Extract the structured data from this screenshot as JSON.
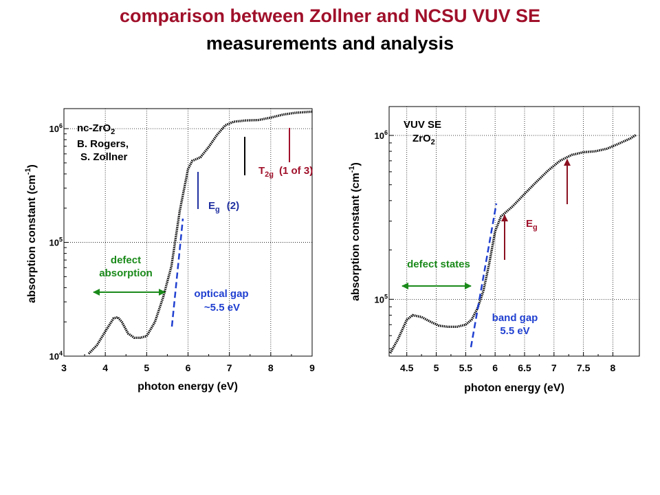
{
  "slide": {
    "title_line1": "comparison between Zollner and NCSU VUV SE",
    "title_line2": "measurements and analysis",
    "title_color": "#a0102a"
  },
  "chart_data": [
    {
      "type": "line",
      "xlabel": "photon energy (eV)",
      "ylabel": "absorption constant (cm-1)",
      "xlim": [
        3,
        9
      ],
      "ylim": [
        10000,
        1500000
      ],
      "yscale": "log",
      "xticks": [
        3,
        4,
        5,
        6,
        7,
        8,
        9
      ],
      "yticks": [
        {
          "value": 10000,
          "label": "10",
          "exp": "4"
        },
        {
          "value": 100000,
          "label": "10",
          "exp": "5"
        },
        {
          "value": 1000000,
          "label": "10",
          "exp": "6"
        }
      ],
      "grid": true,
      "series": [
        {
          "x": [
            3.6,
            3.8,
            4.0,
            4.2,
            4.3,
            4.4,
            4.55,
            4.7,
            4.85,
            5.0,
            5.2,
            5.4,
            5.6,
            5.8,
            6.0,
            6.1,
            6.3,
            6.5,
            6.7,
            6.9,
            7.1,
            7.4,
            7.7,
            8.0,
            8.3,
            8.6,
            9.0
          ],
          "y": [
            10500,
            12500,
            16500,
            21500,
            22000,
            20000,
            15800,
            14500,
            14500,
            15000,
            20000,
            33000,
            62000,
            190000,
            440000,
            520000,
            560000,
            690000,
            880000,
            1070000,
            1150000,
            1180000,
            1190000,
            1250000,
            1330000,
            1380000,
            1410000
          ]
        }
      ],
      "annotations": {
        "sample_1": "nc-ZrO",
        "sample_1_sub": "2",
        "sample_2": "B. Rogers,",
        "sample_3": "S. Zollner",
        "eg_label": "E",
        "eg_sub": "g",
        "eg_num": "(2)",
        "t2g_label": "T",
        "t2g_sub": "2g",
        "t2g_num": "(1 of 3)",
        "defect_1": "defect",
        "defect_2": "absorption",
        "gap_1": "optical gap",
        "gap_2": "~5.5 eV"
      },
      "colors": {
        "eg": "#1f2fa0",
        "t2g": "#a0102a",
        "defect": "#1a8a1a",
        "gap": "#1f3fd0"
      }
    },
    {
      "type": "line",
      "xlabel": "photon energy (eV)",
      "ylabel": "absorption constant (cm-1)",
      "xlim": [
        4.2,
        8.45
      ],
      "ylim": [
        45000,
        1500000
      ],
      "yscale": "log",
      "xticks": [
        4.5,
        5,
        5.5,
        6,
        6.5,
        7,
        7.5,
        8
      ],
      "yticks": [
        {
          "value": 100000,
          "label": "10",
          "exp": "5"
        },
        {
          "value": 1000000,
          "label": "10",
          "exp": "6"
        }
      ],
      "grid": true,
      "series": [
        {
          "x": [
            4.22,
            4.35,
            4.5,
            4.6,
            4.75,
            4.9,
            5.05,
            5.2,
            5.35,
            5.5,
            5.6,
            5.7,
            5.8,
            5.9,
            6.0,
            6.1,
            6.3,
            6.5,
            6.7,
            6.9,
            7.1,
            7.3,
            7.5,
            7.7,
            7.9,
            8.1,
            8.3,
            8.4
          ],
          "y": [
            47000,
            57000,
            75000,
            80000,
            78000,
            73000,
            69000,
            68000,
            68000,
            70000,
            75000,
            88000,
            112000,
            165000,
            260000,
            320000,
            370000,
            440000,
            520000,
            610000,
            700000,
            760000,
            790000,
            800000,
            830000,
            890000,
            960000,
            1010000
          ]
        }
      ],
      "annotations": {
        "sample_1": "VUV SE",
        "sample_2": "ZrO",
        "sample_2_sub": "2",
        "eg_label": "E",
        "eg_sub": "g",
        "defect": "defect states",
        "gap_1": "band gap",
        "gap_2": "5.5 eV"
      },
      "colors": {
        "eg": "#a0102a",
        "arrow": "#8a1020",
        "defect": "#1a8a1a",
        "gap": "#1f3fd0"
      }
    }
  ]
}
